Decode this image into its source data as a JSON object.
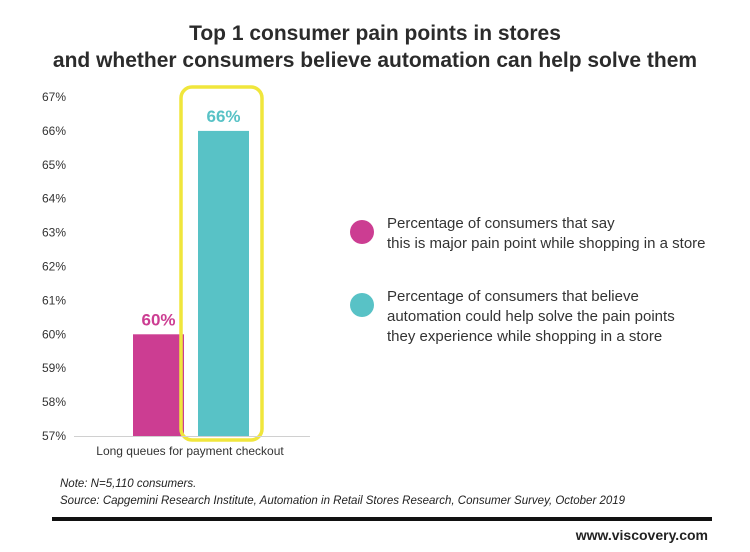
{
  "chart_data": {
    "type": "bar",
    "title_lines": [
      "Top 1 consumer pain points in stores",
      "and whether consumers believe automation can help solve them"
    ],
    "categories": [
      "Long queues for payment checkout"
    ],
    "series": [
      {
        "name_lines": [
          "Percentage of consumers that say",
          "this is major pain point while shopping in a store"
        ],
        "color": "#cc3d92",
        "values": [
          60
        ],
        "data_label": "60%"
      },
      {
        "name_lines": [
          "Percentage of consumers that believe",
          "automation could help solve the pain points",
          "they experience while shopping in a store"
        ],
        "color": "#58c2c6",
        "values": [
          66
        ],
        "data_label": "66%"
      }
    ],
    "ylim": [
      57,
      67
    ],
    "y_ticks": [
      {
        "value": 67,
        "label": "67%"
      },
      {
        "value": 66,
        "label": "66%"
      },
      {
        "value": 65,
        "label": "65%"
      },
      {
        "value": 64,
        "label": "64%"
      },
      {
        "value": 63,
        "label": "63%"
      },
      {
        "value": 62,
        "label": "62%"
      },
      {
        "value": 61,
        "label": "61%"
      },
      {
        "value": 60,
        "label": "60%"
      },
      {
        "value": 59,
        "label": "59%"
      },
      {
        "value": 58,
        "label": "58%"
      },
      {
        "value": 57,
        "label": "57%"
      }
    ],
    "highlight_color": "#f0e63c",
    "grid": false,
    "legend_position": "right"
  },
  "notes": {
    "note": "Note: N=5,110 consumers.",
    "source": "Source: Capgemini Research Institute, Automation in Retail Stores Research, Consumer Survey, October 2019"
  },
  "website": "www.viscovery.com"
}
